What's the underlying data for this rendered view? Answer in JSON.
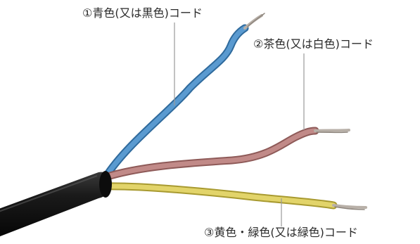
{
  "labels": {
    "blue": "①青色(又は黒色)コード",
    "brown": "②茶色(又は白色)コード",
    "yellow": "③黄色・緑色(又は緑色)コード"
  },
  "colors": {
    "blue_wire": "#4a8ac4",
    "brown_wire": "#b47a78",
    "yellow_wire": "#d8cc5c",
    "cable_sheath": "#1a1a1a",
    "leader_line": "#9a9a9a",
    "bare_copper": "#b8b0a8"
  }
}
